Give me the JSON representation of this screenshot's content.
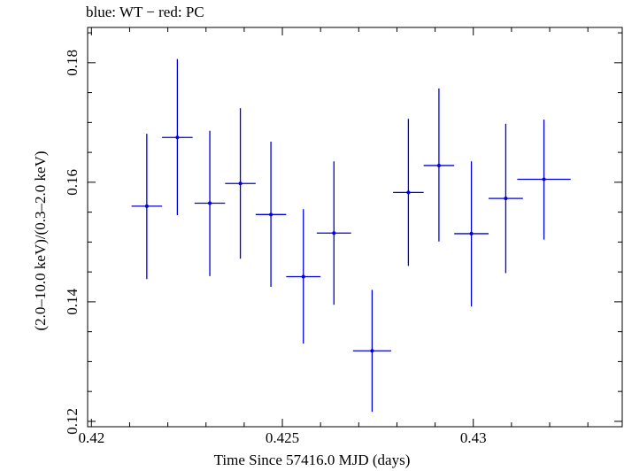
{
  "chart_data": {
    "type": "scatter",
    "title": "blue: WT − red: PC",
    "xlabel": "Time Since 57416.0 MJD (days)",
    "ylabel": "(2.0–10.0 keV)/(0.3–2.0 keV)",
    "xlim": [
      0.4199,
      0.4339
    ],
    "ylim": [
      0.1191,
      0.1859
    ],
    "xticks": [
      0.42,
      0.425,
      0.43
    ],
    "xtick_labels": [
      "0.42",
      "0.425",
      "0.43"
    ],
    "yticks": [
      0.12,
      0.14,
      0.16,
      0.18
    ],
    "ytick_labels": [
      "0.12",
      "0.14",
      "0.16",
      "0.18"
    ],
    "grid": false,
    "series": [
      {
        "color": "#0000dd",
        "points": [
          {
            "x": 0.42145,
            "y": 0.156,
            "xerr": 0.0004,
            "ylo": 0.1438,
            "yhi": 0.1681
          },
          {
            "x": 0.42225,
            "y": 0.1675,
            "xerr": 0.0004,
            "ylo": 0.1545,
            "yhi": 0.1806
          },
          {
            "x": 0.4231,
            "y": 0.1565,
            "xerr": 0.0004,
            "ylo": 0.1443,
            "yhi": 0.1686
          },
          {
            "x": 0.4239,
            "y": 0.1598,
            "xerr": 0.0004,
            "ylo": 0.1472,
            "yhi": 0.1724
          },
          {
            "x": 0.4247,
            "y": 0.1546,
            "xerr": 0.0004,
            "ylo": 0.1425,
            "yhi": 0.1668
          },
          {
            "x": 0.42555,
            "y": 0.1442,
            "xerr": 0.00045,
            "ylo": 0.133,
            "yhi": 0.1555
          },
          {
            "x": 0.42635,
            "y": 0.1515,
            "xerr": 0.00045,
            "ylo": 0.1395,
            "yhi": 0.1635
          },
          {
            "x": 0.42735,
            "y": 0.1318,
            "xerr": 0.0005,
            "ylo": 0.1216,
            "yhi": 0.142
          },
          {
            "x": 0.4283,
            "y": 0.1583,
            "xerr": 0.0004,
            "ylo": 0.146,
            "yhi": 0.1706
          },
          {
            "x": 0.4291,
            "y": 0.1628,
            "xerr": 0.0004,
            "ylo": 0.1501,
            "yhi": 0.1757
          },
          {
            "x": 0.42995,
            "y": 0.1514,
            "xerr": 0.00045,
            "ylo": 0.1392,
            "yhi": 0.1635
          },
          {
            "x": 0.43085,
            "y": 0.1573,
            "xerr": 0.00045,
            "ylo": 0.1448,
            "yhi": 0.1698
          },
          {
            "x": 0.43185,
            "y": 0.1605,
            "xerr": 0.0007,
            "ylo": 0.1504,
            "yhi": 0.1705
          }
        ]
      }
    ]
  }
}
